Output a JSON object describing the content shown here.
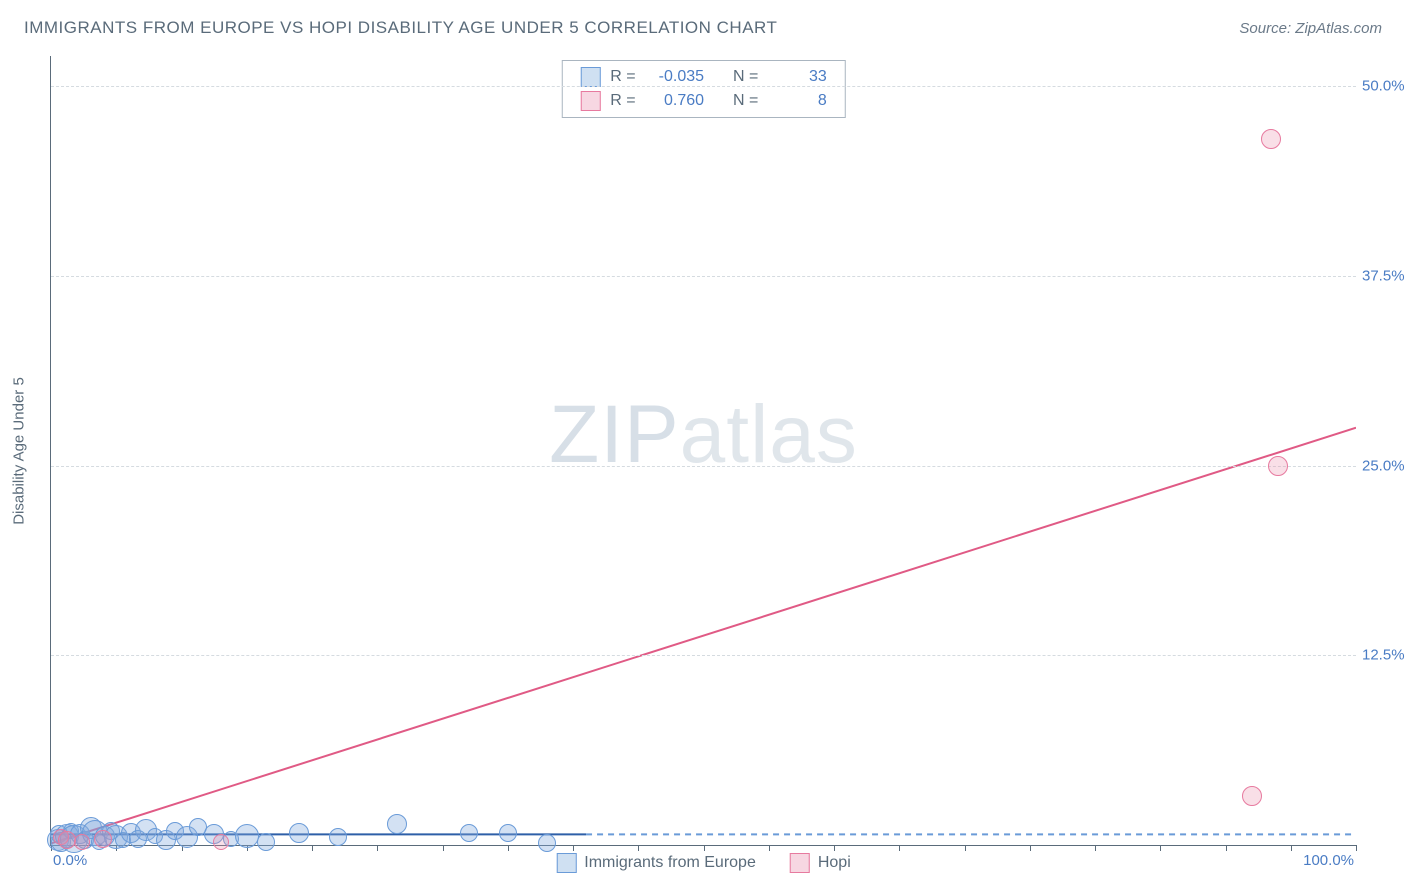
{
  "header": {
    "title": "IMMIGRANTS FROM EUROPE VS HOPI DISABILITY AGE UNDER 5 CORRELATION CHART",
    "source_label": "Source: ",
    "source_value": "ZipAtlas.com"
  },
  "chart": {
    "type": "scatter",
    "y_axis_title": "Disability Age Under 5",
    "xlim": [
      0,
      100
    ],
    "ylim": [
      0,
      52
    ],
    "x_tick_step": 5,
    "y_ticks": [
      12.5,
      25.0,
      37.5,
      50.0
    ],
    "y_tick_labels": [
      "12.5%",
      "25.0%",
      "37.5%",
      "50.0%"
    ],
    "x_zero_label": "0.0%",
    "x_max_label": "100.0%",
    "background_color": "#ffffff",
    "grid_color": "#d5dbe0",
    "axis_color": "#5a6b7a",
    "tick_label_color": "#4a7cc4",
    "series": [
      {
        "key": "europe",
        "label": "Immigrants from Europe",
        "marker_fill": "rgba(130,170,220,0.35)",
        "marker_stroke": "#6a9bd8",
        "line_color": "#2e5fa8",
        "line_width": 2,
        "reg_R": "-0.035",
        "reg_N": "33",
        "swatch_fill": "#cfe0f2",
        "swatch_border": "#6a9bd8",
        "points": [
          {
            "x": 0.5,
            "y": 0.3,
            "r": 11
          },
          {
            "x": 0.6,
            "y": 0.7,
            "r": 9
          },
          {
            "x": 0.8,
            "y": 0.2,
            "r": 10
          },
          {
            "x": 1.2,
            "y": 0.6,
            "r": 12
          },
          {
            "x": 1.5,
            "y": 0.9,
            "r": 8
          },
          {
            "x": 1.8,
            "y": 0.4,
            "r": 14
          },
          {
            "x": 2.2,
            "y": 0.7,
            "r": 10
          },
          {
            "x": 2.6,
            "y": 0.3,
            "r": 9
          },
          {
            "x": 3.1,
            "y": 1.1,
            "r": 11
          },
          {
            "x": 3.4,
            "y": 0.8,
            "r": 13
          },
          {
            "x": 3.7,
            "y": 0.2,
            "r": 8
          },
          {
            "x": 4.1,
            "y": 0.6,
            "r": 10
          },
          {
            "x": 4.6,
            "y": 0.9,
            "r": 9
          },
          {
            "x": 5.0,
            "y": 0.5,
            "r": 12
          },
          {
            "x": 5.5,
            "y": 0.3,
            "r": 8
          },
          {
            "x": 6.1,
            "y": 0.8,
            "r": 10
          },
          {
            "x": 6.7,
            "y": 0.4,
            "r": 9
          },
          {
            "x": 7.3,
            "y": 1.0,
            "r": 11
          },
          {
            "x": 8.0,
            "y": 0.6,
            "r": 8
          },
          {
            "x": 8.8,
            "y": 0.3,
            "r": 10
          },
          {
            "x": 9.5,
            "y": 0.9,
            "r": 9
          },
          {
            "x": 10.4,
            "y": 0.5,
            "r": 11
          },
          {
            "x": 11.3,
            "y": 1.2,
            "r": 9
          },
          {
            "x": 12.5,
            "y": 0.7,
            "r": 10
          },
          {
            "x": 13.8,
            "y": 0.4,
            "r": 8
          },
          {
            "x": 15.0,
            "y": 0.6,
            "r": 12
          },
          {
            "x": 16.5,
            "y": 0.2,
            "r": 9
          },
          {
            "x": 19.0,
            "y": 0.8,
            "r": 10
          },
          {
            "x": 22.0,
            "y": 0.5,
            "r": 9
          },
          {
            "x": 26.5,
            "y": 1.4,
            "r": 10
          },
          {
            "x": 32.0,
            "y": 0.8,
            "r": 9
          },
          {
            "x": 35.0,
            "y": 0.8,
            "r": 9
          },
          {
            "x": 38.0,
            "y": 0.1,
            "r": 9
          }
        ],
        "trend": {
          "x1": 0,
          "y1": 0.7,
          "x2": 41,
          "y2": 0.7,
          "dashed_ext_to": 100
        }
      },
      {
        "key": "hopi",
        "label": "Hopi",
        "marker_fill": "rgba(235,140,170,0.28)",
        "marker_stroke": "#e77a9f",
        "line_color": "#e05a85",
        "line_width": 2,
        "reg_R": " 0.760",
        "reg_N": " 8",
        "swatch_fill": "#f7d7e2",
        "swatch_border": "#e77a9f",
        "points": [
          {
            "x": 0.8,
            "y": 0.5,
            "r": 8
          },
          {
            "x": 1.2,
            "y": 0.3,
            "r": 9
          },
          {
            "x": 2.4,
            "y": 0.2,
            "r": 8
          },
          {
            "x": 4.0,
            "y": 0.4,
            "r": 9
          },
          {
            "x": 13.0,
            "y": 0.2,
            "r": 8
          },
          {
            "x": 92.0,
            "y": 3.2,
            "r": 10
          },
          {
            "x": 94.0,
            "y": 25.0,
            "r": 10
          },
          {
            "x": 93.5,
            "y": 46.5,
            "r": 10
          }
        ],
        "trend": {
          "x1": 0,
          "y1": 0.1,
          "x2": 100,
          "y2": 27.5
        }
      }
    ]
  },
  "regression_box": {
    "R_label": "R = ",
    "N_label": "N = "
  },
  "watermark": {
    "zip": "ZIP",
    "atlas": "atlas"
  }
}
